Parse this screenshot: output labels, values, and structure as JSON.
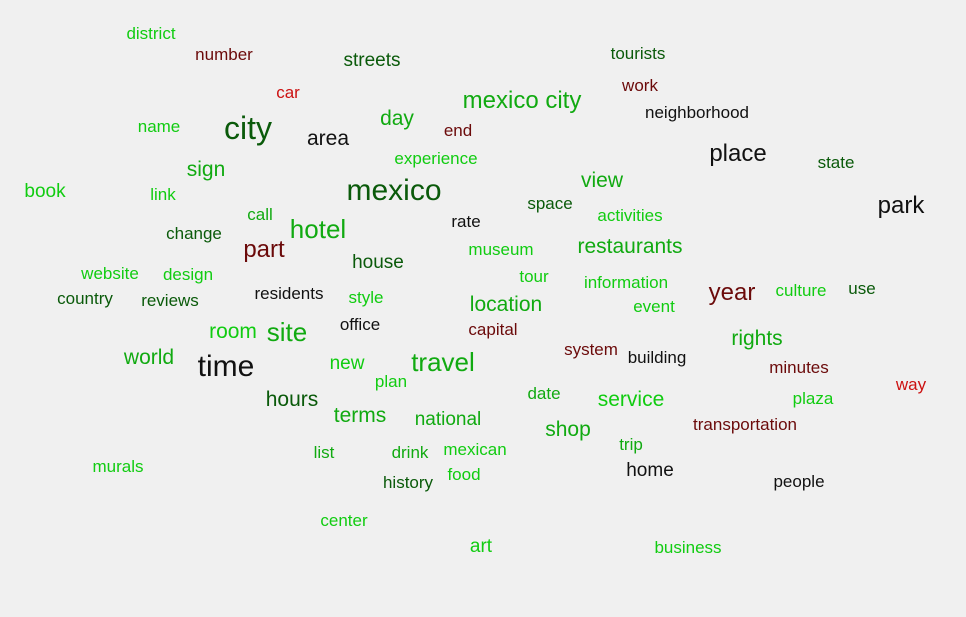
{
  "palette": {
    "green": "#11cc11",
    "mid_green": "#11aa11",
    "dark_green": "#0a5a0a",
    "black": "#111111",
    "dark_red": "#6b0a0a",
    "red": "#cc1111",
    "background": "#f0f0f0"
  },
  "words": [
    {
      "text": "district",
      "color": "green"
    },
    {
      "text": "number",
      "color": "dark_red"
    },
    {
      "text": "streets",
      "color": "dark_green"
    },
    {
      "text": "tourists",
      "color": "dark_green"
    },
    {
      "text": "work",
      "color": "dark_red"
    },
    {
      "text": "car",
      "color": "red"
    },
    {
      "text": "mexico city",
      "color": "mid_green"
    },
    {
      "text": "neighborhood",
      "color": "black"
    },
    {
      "text": "name",
      "color": "green"
    },
    {
      "text": "city",
      "color": "dark_green"
    },
    {
      "text": "area",
      "color": "black"
    },
    {
      "text": "day",
      "color": "mid_green"
    },
    {
      "text": "end",
      "color": "dark_red"
    },
    {
      "text": "experience",
      "color": "green"
    },
    {
      "text": "place",
      "color": "black"
    },
    {
      "text": "state",
      "color": "dark_green"
    },
    {
      "text": "sign",
      "color": "mid_green"
    },
    {
      "text": "book",
      "color": "green"
    },
    {
      "text": "link",
      "color": "green"
    },
    {
      "text": "mexico",
      "color": "dark_green"
    },
    {
      "text": "view",
      "color": "mid_green"
    },
    {
      "text": "space",
      "color": "dark_green"
    },
    {
      "text": "park",
      "color": "black"
    },
    {
      "text": "call",
      "color": "mid_green"
    },
    {
      "text": "activities",
      "color": "green"
    },
    {
      "text": "change",
      "color": "dark_green"
    },
    {
      "text": "hotel",
      "color": "mid_green"
    },
    {
      "text": "rate",
      "color": "black"
    },
    {
      "text": "part",
      "color": "dark_red"
    },
    {
      "text": "museum",
      "color": "green"
    },
    {
      "text": "restaurants",
      "color": "mid_green"
    },
    {
      "text": "house",
      "color": "dark_green"
    },
    {
      "text": "website",
      "color": "green"
    },
    {
      "text": "design",
      "color": "green"
    },
    {
      "text": "tour",
      "color": "green"
    },
    {
      "text": "information",
      "color": "green"
    },
    {
      "text": "country",
      "color": "dark_green"
    },
    {
      "text": "reviews",
      "color": "dark_green"
    },
    {
      "text": "residents",
      "color": "black"
    },
    {
      "text": "style",
      "color": "green"
    },
    {
      "text": "year",
      "color": "dark_red"
    },
    {
      "text": "culture",
      "color": "green"
    },
    {
      "text": "use",
      "color": "dark_green"
    },
    {
      "text": "location",
      "color": "mid_green"
    },
    {
      "text": "event",
      "color": "green"
    },
    {
      "text": "room",
      "color": "green"
    },
    {
      "text": "site",
      "color": "mid_green"
    },
    {
      "text": "office",
      "color": "black"
    },
    {
      "text": "capital",
      "color": "dark_red"
    },
    {
      "text": "rights",
      "color": "mid_green"
    },
    {
      "text": "world",
      "color": "mid_green"
    },
    {
      "text": "system",
      "color": "dark_red"
    },
    {
      "text": "building",
      "color": "black"
    },
    {
      "text": "time",
      "color": "black"
    },
    {
      "text": "new",
      "color": "green"
    },
    {
      "text": "travel",
      "color": "mid_green"
    },
    {
      "text": "minutes",
      "color": "dark_red"
    },
    {
      "text": "plan",
      "color": "green"
    },
    {
      "text": "way",
      "color": "red"
    },
    {
      "text": "date",
      "color": "mid_green"
    },
    {
      "text": "plaza",
      "color": "green"
    },
    {
      "text": "hours",
      "color": "dark_green"
    },
    {
      "text": "service",
      "color": "green"
    },
    {
      "text": "terms",
      "color": "mid_green"
    },
    {
      "text": "national",
      "color": "mid_green"
    },
    {
      "text": "transportation",
      "color": "dark_red"
    },
    {
      "text": "shop",
      "color": "mid_green"
    },
    {
      "text": "trip",
      "color": "mid_green"
    },
    {
      "text": "list",
      "color": "mid_green"
    },
    {
      "text": "drink",
      "color": "mid_green"
    },
    {
      "text": "mexican",
      "color": "green"
    },
    {
      "text": "murals",
      "color": "green"
    },
    {
      "text": "home",
      "color": "black"
    },
    {
      "text": "food",
      "color": "green"
    },
    {
      "text": "history",
      "color": "dark_green"
    },
    {
      "text": "people",
      "color": "black"
    },
    {
      "text": "center",
      "color": "green"
    },
    {
      "text": "art",
      "color": "green"
    },
    {
      "text": "business",
      "color": "green"
    }
  ]
}
